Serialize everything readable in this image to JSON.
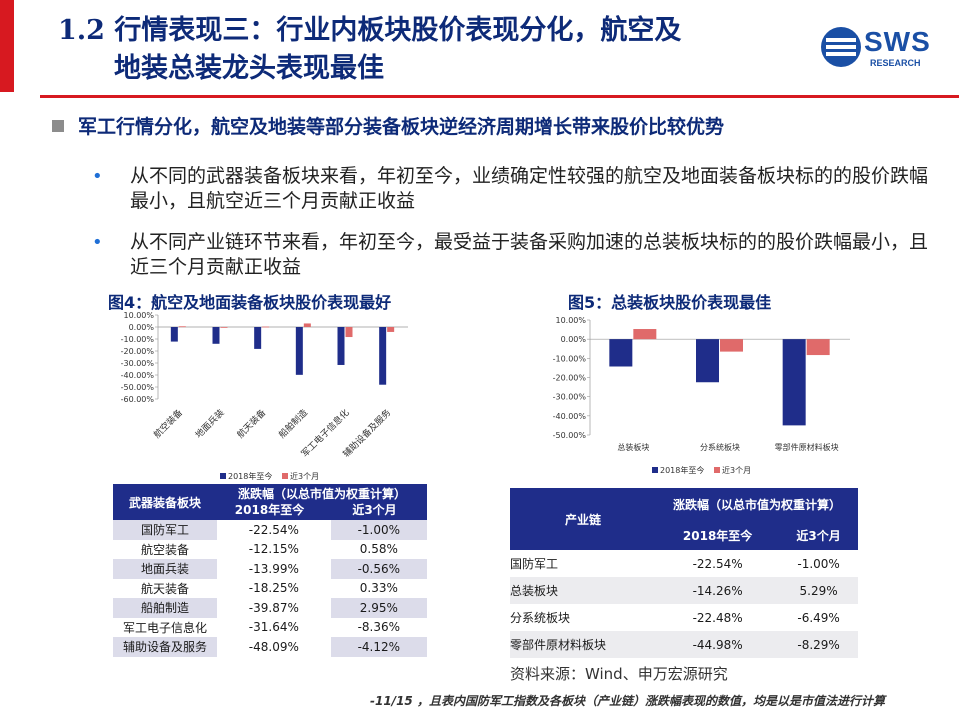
{
  "header": {
    "title_line1": "1.2 行情表现三：行业内板块股价表现分化，航空及",
    "title_line2": "地装总装龙头表现最佳",
    "logo_text": "SWS",
    "logo_sub": "RESEARCH"
  },
  "body": {
    "headline": "军工行情分化，航空及地装等部分装备板块逆经济周期增长带来股价比较优势",
    "bullets": [
      {
        "text": "从不同的武器装备板块来看，年初至今，业绩确定性较强的航空及地面装备板块标的的股价跌幅最小，且航空近三个月贡献正收益"
      },
      {
        "text": "从不同产业链环节来看，年初至今，最受益于装备采购加速的总装板块标的的股价跌幅最小，且近三个月贡献正收益"
      }
    ]
  },
  "fig4": {
    "caption": "图4：航空及地面装备板块股价表现最好",
    "legend": [
      "2018年至今",
      "近3个月"
    ]
  },
  "fig5": {
    "caption": "图5：总装板块股价表现最佳",
    "legend": [
      "2018年至今",
      "近3个月"
    ]
  },
  "table1": {
    "header_col1": "武器装备板块",
    "header_group": "涨跌幅（以总市值为权重计算）",
    "header_c2": "2018年至今",
    "header_c3": "近3个月",
    "rows": [
      [
        "国防军工",
        "-22.54%",
        "-1.00%"
      ],
      [
        "航空装备",
        "-12.15%",
        "0.58%"
      ],
      [
        "地面兵装",
        "-13.99%",
        "-0.56%"
      ],
      [
        "航天装备",
        "-18.25%",
        "0.33%"
      ],
      [
        "船舶制造",
        "-39.87%",
        "2.95%"
      ],
      [
        "军工电子信息化",
        "-31.64%",
        "-8.36%"
      ],
      [
        "辅助设备及服务",
        "-48.09%",
        "-4.12%"
      ]
    ]
  },
  "table2": {
    "header_col1": "产业链",
    "header_group": "涨跌幅（以总市值为权重计算）",
    "header_c2": "2018年至今",
    "header_c3": "近3个月",
    "rows": [
      [
        "国防军工",
        "-22.54%",
        "-1.00%"
      ],
      [
        "总装板块",
        "-14.26%",
        "5.29%"
      ],
      [
        "分系统板块",
        "-22.48%",
        "-6.49%"
      ],
      [
        "零部件原材料板块",
        "-44.98%",
        "-8.29%"
      ]
    ]
  },
  "footer": {
    "source": "资料来源：Wind、申万宏源研究",
    "note": "-11/15 ，且表内国防军工指数及各板块（产业链）涨跌幅表现的数值，均是以是市值法进行计算"
  },
  "colors": {
    "navy": "#1f2d8a",
    "pink": "#e06a6a",
    "title": "#0d2a78",
    "accent_red": "#d71920"
  },
  "chart_data": [
    {
      "type": "bar",
      "categories": [
        "航空装备",
        "地面兵装",
        "航天装备",
        "船舶制造",
        "军工电子信息化",
        "辅助设备及服务"
      ],
      "series": [
        {
          "name": "2018年至今",
          "values": [
            -12.15,
            -13.99,
            -18.25,
            -39.87,
            -31.64,
            -48.09
          ]
        },
        {
          "name": "近3个月",
          "values": [
            0.58,
            -0.56,
            0.33,
            2.95,
            -8.36,
            -4.12
          ]
        }
      ],
      "yticks": [
        "10.00%",
        "0.00%",
        "-10.00%",
        "-20.00%",
        "-30.00%",
        "-40.00%",
        "-50.00%",
        "-60.00%"
      ],
      "ylim": [
        -60,
        10
      ]
    },
    {
      "type": "bar",
      "categories": [
        "总装板块",
        "分系统板块",
        "零部件原材料板块"
      ],
      "series": [
        {
          "name": "2018年至今",
          "values": [
            -14.26,
            -22.48,
            -44.98
          ]
        },
        {
          "name": "近3个月",
          "values": [
            5.29,
            -6.49,
            -8.29
          ]
        }
      ],
      "yticks": [
        "10.00%",
        "0.00%",
        "-10.00%",
        "-20.00%",
        "-30.00%",
        "-40.00%",
        "-50.00%"
      ],
      "ylim": [
        -50,
        10
      ]
    }
  ]
}
